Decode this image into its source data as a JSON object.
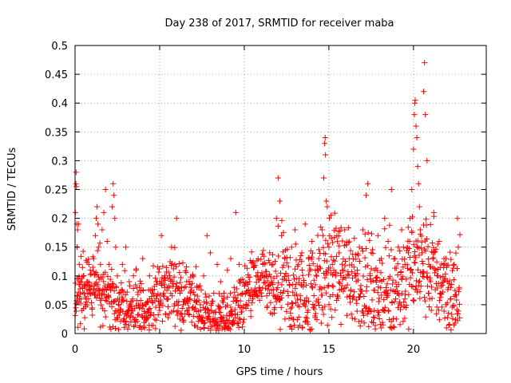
{
  "chart_data": {
    "type": "scatter",
    "title": "Day 238 of 2017, SRMTID for receiver maba",
    "xlabel": "GPS time / hours",
    "ylabel": "SRMTID / TECUs",
    "xlim": [
      0,
      24.3
    ],
    "ylim": [
      0,
      0.5
    ],
    "x_ticks": [
      0,
      5,
      10,
      15,
      20
    ],
    "x_tick_labels": [
      "0",
      "5",
      "10",
      "15",
      "20"
    ],
    "y_ticks": [
      0,
      0.05,
      0.1,
      0.15,
      0.2,
      0.25,
      0.3,
      0.35,
      0.4,
      0.45,
      0.5
    ],
    "y_tick_labels": [
      "0",
      "0.05",
      "0.1",
      "0.15",
      "0.2",
      "0.25",
      "0.3",
      "0.35",
      "0.4",
      "0.45",
      "0.5"
    ],
    "grid": true,
    "marker": "plus",
    "color": "#ff0000",
    "series": [
      {
        "name": "SRMTID",
        "points": [
          [
            0.02,
            0.21
          ],
          [
            0.05,
            0.26
          ],
          [
            0.06,
            0.28
          ],
          [
            0.08,
            0.255
          ],
          [
            0.1,
            0.19
          ],
          [
            0.12,
            0.15
          ],
          [
            0.15,
            0.18
          ],
          [
            0.2,
            0.19
          ],
          [
            0.25,
            0.12
          ],
          [
            0.3,
            0.09
          ],
          [
            0.35,
            0.06
          ],
          [
            0.4,
            0.04
          ],
          [
            0.45,
            0.08
          ],
          [
            0.5,
            0.1
          ],
          [
            0.55,
            0.07
          ],
          [
            0.6,
            0.05
          ],
          [
            0.7,
            0.09
          ],
          [
            0.8,
            0.06
          ],
          [
            0.9,
            0.11
          ],
          [
            1.0,
            0.07
          ],
          [
            1.1,
            0.13
          ],
          [
            1.2,
            0.17
          ],
          [
            1.25,
            0.2
          ],
          [
            1.3,
            0.22
          ],
          [
            1.35,
            0.19
          ],
          [
            1.4,
            0.15
          ],
          [
            1.5,
            0.12
          ],
          [
            1.6,
            0.18
          ],
          [
            1.7,
            0.21
          ],
          [
            1.8,
            0.25
          ],
          [
            1.9,
            0.16
          ],
          [
            2.0,
            0.12
          ],
          [
            2.1,
            0.08
          ],
          [
            2.2,
            0.22
          ],
          [
            2.25,
            0.26
          ],
          [
            2.3,
            0.24
          ],
          [
            2.35,
            0.2
          ],
          [
            2.4,
            0.15
          ],
          [
            2.5,
            0.1
          ],
          [
            2.6,
            0.07
          ],
          [
            2.8,
            0.12
          ],
          [
            3.0,
            0.15
          ],
          [
            3.2,
            0.09
          ],
          [
            3.4,
            0.06
          ],
          [
            3.6,
            0.11
          ],
          [
            3.8,
            0.08
          ],
          [
            4.0,
            0.13
          ],
          [
            4.2,
            0.05
          ],
          [
            4.4,
            0.1
          ],
          [
            4.6,
            0.07
          ],
          [
            4.8,
            0.09
          ],
          [
            5.0,
            0.04
          ],
          [
            5.1,
            0.17
          ],
          [
            5.3,
            0.08
          ],
          [
            5.5,
            0.06
          ],
          [
            5.7,
            0.15
          ],
          [
            5.9,
            0.12
          ],
          [
            6.0,
            0.2
          ],
          [
            6.2,
            0.07
          ],
          [
            6.4,
            0.05
          ],
          [
            6.6,
            0.09
          ],
          [
            6.8,
            0.06
          ],
          [
            7.0,
            0.03
          ],
          [
            7.2,
            0.08
          ],
          [
            7.4,
            0.05
          ],
          [
            7.6,
            0.1
          ],
          [
            7.8,
            0.17
          ],
          [
            8.0,
            0.14
          ],
          [
            8.2,
            0.07
          ],
          [
            8.4,
            0.12
          ],
          [
            8.6,
            0.09
          ],
          [
            8.8,
            0.06
          ],
          [
            9.0,
            0.11
          ],
          [
            9.2,
            0.13
          ],
          [
            9.4,
            0.08
          ],
          [
            9.5,
            0.21
          ],
          [
            9.7,
            0.12
          ],
          [
            9.9,
            0.07
          ],
          [
            10.1,
            0.05
          ],
          [
            10.3,
            0.09
          ],
          [
            10.5,
            0.06
          ],
          [
            10.7,
            0.1
          ],
          [
            10.9,
            0.08
          ],
          [
            11.1,
            0.12
          ],
          [
            11.3,
            0.1
          ],
          [
            11.5,
            0.14
          ],
          [
            11.7,
            0.12
          ],
          [
            11.9,
            0.2
          ],
          [
            12.0,
            0.27
          ],
          [
            12.1,
            0.23
          ],
          [
            12.2,
            0.17
          ],
          [
            12.4,
            0.13
          ],
          [
            12.6,
            0.1
          ],
          [
            12.8,
            0.15
          ],
          [
            13.0,
            0.18
          ],
          [
            13.2,
            0.12
          ],
          [
            13.4,
            0.14
          ],
          [
            13.6,
            0.19
          ],
          [
            13.8,
            0.13
          ],
          [
            14.0,
            0.16
          ],
          [
            14.2,
            0.11
          ],
          [
            14.4,
            0.13
          ],
          [
            14.6,
            0.18
          ],
          [
            14.7,
            0.27
          ],
          [
            14.75,
            0.33
          ],
          [
            14.78,
            0.34
          ],
          [
            14.8,
            0.31
          ],
          [
            14.85,
            0.23
          ],
          [
            14.9,
            0.22
          ],
          [
            15.0,
            0.15
          ],
          [
            15.2,
            0.12
          ],
          [
            15.4,
            0.1
          ],
          [
            15.6,
            0.14
          ],
          [
            15.8,
            0.11
          ],
          [
            16.0,
            0.08
          ],
          [
            16.2,
            0.13
          ],
          [
            16.4,
            0.06
          ],
          [
            16.6,
            0.1
          ],
          [
            16.8,
            0.15
          ],
          [
            17.0,
            0.18
          ],
          [
            17.2,
            0.24
          ],
          [
            17.3,
            0.26
          ],
          [
            17.5,
            0.14
          ],
          [
            17.7,
            0.11
          ],
          [
            17.9,
            0.17
          ],
          [
            18.1,
            0.13
          ],
          [
            18.3,
            0.2
          ],
          [
            18.5,
            0.16
          ],
          [
            18.7,
            0.25
          ],
          [
            18.9,
            0.13
          ],
          [
            19.1,
            0.15
          ],
          [
            19.3,
            0.18
          ],
          [
            19.5,
            0.12
          ],
          [
            19.7,
            0.14
          ],
          [
            19.8,
            0.2
          ],
          [
            19.9,
            0.25
          ],
          [
            20.0,
            0.32
          ],
          [
            20.05,
            0.38
          ],
          [
            20.08,
            0.4
          ],
          [
            20.1,
            0.405
          ],
          [
            20.15,
            0.36
          ],
          [
            20.2,
            0.34
          ],
          [
            20.25,
            0.29
          ],
          [
            20.3,
            0.26
          ],
          [
            20.35,
            0.22
          ],
          [
            20.4,
            0.18
          ],
          [
            20.5,
            0.14
          ],
          [
            20.6,
            0.42
          ],
          [
            20.65,
            0.47
          ],
          [
            20.7,
            0.38
          ],
          [
            20.8,
            0.3
          ],
          [
            20.9,
            0.12
          ],
          [
            21.0,
            0.09
          ],
          [
            21.2,
            0.21
          ],
          [
            21.4,
            0.1
          ],
          [
            21.6,
            0.07
          ],
          [
            21.8,
            0.13
          ],
          [
            22.0,
            0.09
          ],
          [
            22.2,
            0.06
          ],
          [
            22.4,
            0.12
          ],
          [
            22.6,
            0.2
          ],
          [
            22.7,
            0.08
          ]
        ]
      }
    ],
    "background_cloud": {
      "hours_start": 0,
      "hours_end": 22.75,
      "samples_per_hour": 60,
      "typical_range": [
        0.02,
        0.15
      ]
    }
  }
}
